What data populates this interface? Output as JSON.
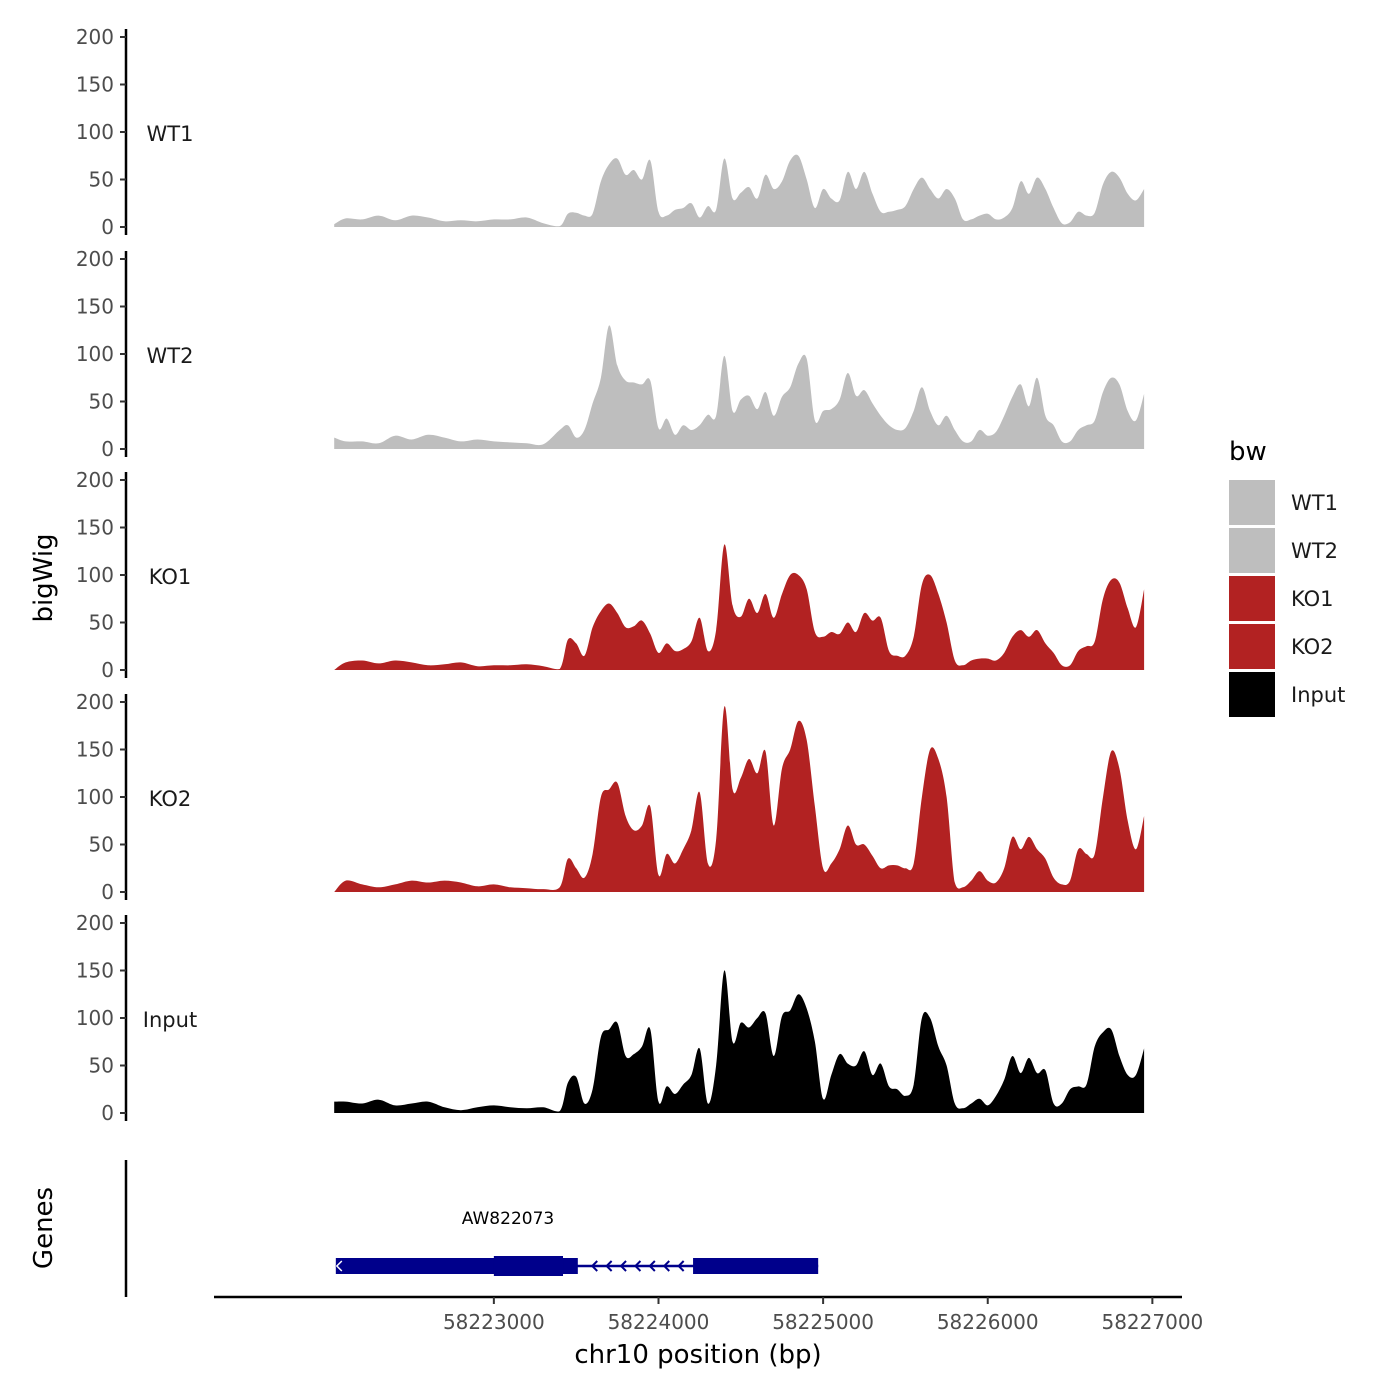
{
  "chart_data": {
    "type": "area",
    "description_title": "",
    "xlabel": "chr10 position (bp)",
    "ylabel": "bigWig",
    "genes_label": "Genes",
    "x_ticks": [
      58223000,
      58224000,
      58225000,
      58226000,
      58227000
    ],
    "x_tick_labels": [
      "58223000",
      "58224000",
      "58225000",
      "58226000",
      "58227000"
    ],
    "xlim": [
      58221300,
      58227180
    ],
    "ylim": [
      0,
      200
    ],
    "y_ticks": [
      0,
      50,
      100,
      150,
      200
    ],
    "y_tick_labels": [
      "0",
      "50",
      "100",
      "150",
      "200"
    ],
    "legend": {
      "title": "bw",
      "position": "right",
      "entries": [
        {
          "name": "WT1",
          "color": "#bebebe"
        },
        {
          "name": "WT2",
          "color": "#bebebe"
        },
        {
          "name": "KO1",
          "color": "#b22222"
        },
        {
          "name": "KO2",
          "color": "#b22222"
        },
        {
          "name": "Input",
          "color": "#000000"
        }
      ]
    },
    "x": [
      58222030,
      58222100,
      58222200,
      58222300,
      58222400,
      58222500,
      58222600,
      58222700,
      58222800,
      58222900,
      58223000,
      58223100,
      58223200,
      58223300,
      58223400,
      58223450,
      58223500,
      58223550,
      58223600,
      58223650,
      58223700,
      58223750,
      58223800,
      58223850,
      58223900,
      58223950,
      58224000,
      58224050,
      58224100,
      58224150,
      58224200,
      58224250,
      58224300,
      58224350,
      58224400,
      58224450,
      58224500,
      58224550,
      58224600,
      58224650,
      58224700,
      58224750,
      58224800,
      58224850,
      58224900,
      58224950,
      58225000,
      58225050,
      58225100,
      58225150,
      58225200,
      58225250,
      58225300,
      58225350,
      58225400,
      58225450,
      58225500,
      58225550,
      58225600,
      58225650,
      58225700,
      58225750,
      58225800,
      58225850,
      58225900,
      58225950,
      58226000,
      58226050,
      58226100,
      58226150,
      58226200,
      58226250,
      58226300,
      58226350,
      58226400,
      58226450,
      58226500,
      58226550,
      58226600,
      58226650,
      58226700,
      58226750,
      58226800,
      58226850,
      58226900,
      58226950
    ],
    "series": [
      {
        "name": "WT1",
        "color": "#bebebe",
        "values": [
          3,
          9,
          8,
          12,
          7,
          12,
          10,
          6,
          7,
          6,
          8,
          8,
          10,
          4,
          1,
          14,
          15,
          12,
          14,
          48,
          66,
          72,
          55,
          60,
          50,
          70,
          16,
          12,
          18,
          20,
          25,
          10,
          22,
          18,
          72,
          30,
          36,
          42,
          30,
          55,
          40,
          48,
          70,
          75,
          50,
          20,
          40,
          30,
          28,
          58,
          40,
          58,
          35,
          16,
          16,
          18,
          22,
          40,
          52,
          40,
          30,
          40,
          30,
          8,
          8,
          12,
          14,
          8,
          10,
          20,
          48,
          35,
          52,
          40,
          20,
          4,
          5,
          16,
          12,
          15,
          45,
          58,
          52,
          35,
          28,
          40
        ]
      },
      {
        "name": "WT2",
        "color": "#bebebe",
        "values": [
          12,
          8,
          8,
          6,
          14,
          10,
          15,
          12,
          8,
          10,
          8,
          7,
          6,
          5,
          20,
          25,
          12,
          20,
          48,
          75,
          130,
          88,
          72,
          70,
          68,
          72,
          22,
          32,
          15,
          25,
          20,
          25,
          36,
          35,
          98,
          40,
          52,
          56,
          42,
          60,
          35,
          55,
          65,
          90,
          95,
          30,
          40,
          42,
          52,
          80,
          56,
          62,
          48,
          35,
          25,
          20,
          22,
          40,
          65,
          40,
          25,
          35,
          20,
          8,
          8,
          20,
          14,
          18,
          35,
          55,
          68,
          45,
          75,
          35,
          25,
          8,
          8,
          20,
          25,
          30,
          60,
          75,
          68,
          40,
          30,
          58
        ]
      },
      {
        "name": "KO1",
        "color": "#b22222",
        "values": [
          0,
          8,
          10,
          7,
          10,
          8,
          5,
          6,
          8,
          4,
          5,
          5,
          6,
          4,
          1,
          32,
          28,
          15,
          45,
          62,
          70,
          60,
          45,
          46,
          52,
          38,
          18,
          28,
          20,
          22,
          30,
          55,
          20,
          42,
          132,
          68,
          56,
          75,
          60,
          80,
          55,
          80,
          100,
          100,
          85,
          40,
          35,
          40,
          38,
          50,
          40,
          60,
          52,
          55,
          20,
          15,
          15,
          35,
          90,
          100,
          80,
          50,
          10,
          5,
          10,
          12,
          12,
          10,
          18,
          35,
          42,
          35,
          42,
          28,
          18,
          5,
          5,
          20,
          25,
          30,
          75,
          95,
          92,
          65,
          45,
          85
        ]
      },
      {
        "name": "KO2",
        "color": "#b22222",
        "values": [
          0,
          12,
          8,
          5,
          8,
          12,
          10,
          12,
          10,
          6,
          8,
          5,
          4,
          3,
          5,
          35,
          25,
          15,
          40,
          100,
          108,
          115,
          80,
          65,
          70,
          90,
          18,
          40,
          30,
          45,
          65,
          105,
          30,
          55,
          195,
          108,
          120,
          140,
          125,
          148,
          70,
          130,
          150,
          180,
          160,
          90,
          25,
          30,
          45,
          70,
          50,
          50,
          38,
          25,
          28,
          28,
          25,
          30,
          100,
          150,
          140,
          100,
          10,
          5,
          12,
          22,
          12,
          10,
          25,
          58,
          45,
          58,
          45,
          35,
          15,
          8,
          12,
          45,
          40,
          40,
          100,
          148,
          130,
          75,
          45,
          80
        ]
      },
      {
        "name": "Input",
        "color": "#000000",
        "values": [
          12,
          12,
          10,
          14,
          8,
          10,
          12,
          6,
          3,
          6,
          8,
          6,
          5,
          6,
          2,
          32,
          38,
          10,
          25,
          80,
          88,
          95,
          60,
          62,
          70,
          88,
          12,
          28,
          20,
          30,
          40,
          68,
          10,
          50,
          150,
          75,
          95,
          90,
          100,
          105,
          60,
          102,
          108,
          125,
          110,
          75,
          15,
          40,
          62,
          52,
          50,
          65,
          40,
          52,
          28,
          25,
          18,
          30,
          100,
          100,
          70,
          50,
          10,
          5,
          10,
          15,
          8,
          18,
          35,
          60,
          42,
          58,
          42,
          45,
          10,
          10,
          25,
          28,
          30,
          70,
          85,
          88,
          60,
          40,
          40,
          68
        ]
      }
    ],
    "genes": [
      {
        "name": "AW822073",
        "strand": "-",
        "start": 58222040,
        "end": 58224970,
        "exons": [
          [
            58222040,
            58223510
          ],
          [
            58224210,
            58224970
          ]
        ],
        "thick": [
          [
            58223000,
            58223420
          ]
        ]
      }
    ]
  }
}
